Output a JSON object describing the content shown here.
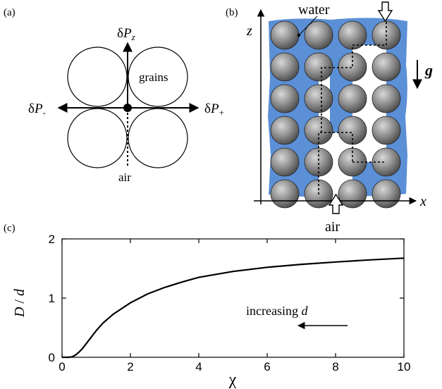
{
  "panel_a": {
    "label": "(a)",
    "dp_z_delta": "δ",
    "dp_z_letter": "P",
    "dp_z_sub": "z",
    "dp_minus_delta": "δ",
    "dp_minus_letter": "P",
    "dp_minus_sub": "-",
    "dp_plus_delta": "δ",
    "dp_plus_letter": "P",
    "dp_plus_sub": "+",
    "grains_label": "grains",
    "air_label": "air"
  },
  "panel_b": {
    "label": "(b)",
    "water_label": "water",
    "z_axis_label": "z",
    "x_axis_label": "x",
    "gravity_label": "g",
    "air_label": "air",
    "water_color": "#5b8fd6",
    "grain_color": "#8a8a8a"
  },
  "panel_c": {
    "label": "(c)",
    "annotation_prefix": "increasing ",
    "annotation_var": "d"
  },
  "chart_data": {
    "type": "line",
    "xlabel": "χ",
    "ylabel_num": "D",
    "ylabel_sep": " / ",
    "ylabel_den": "d",
    "xlim": [
      0,
      10
    ],
    "ylim": [
      0,
      2
    ],
    "xticks": [
      0,
      2,
      4,
      6,
      8,
      10
    ],
    "yticks": [
      0,
      1,
      2
    ],
    "grid": false,
    "series": [
      {
        "x": [
          0,
          0.2,
          0.3,
          0.4,
          0.5,
          0.6,
          0.8,
          1.0,
          1.2,
          1.5,
          2.0,
          2.5,
          3.0,
          3.5,
          4.0,
          5.0,
          6.0,
          7.0,
          8.0,
          9.0,
          10.0
        ],
        "y": [
          0,
          0,
          0.01,
          0.04,
          0.09,
          0.15,
          0.3,
          0.45,
          0.58,
          0.73,
          0.92,
          1.07,
          1.18,
          1.27,
          1.35,
          1.45,
          1.52,
          1.57,
          1.61,
          1.645,
          1.675
        ]
      }
    ]
  }
}
